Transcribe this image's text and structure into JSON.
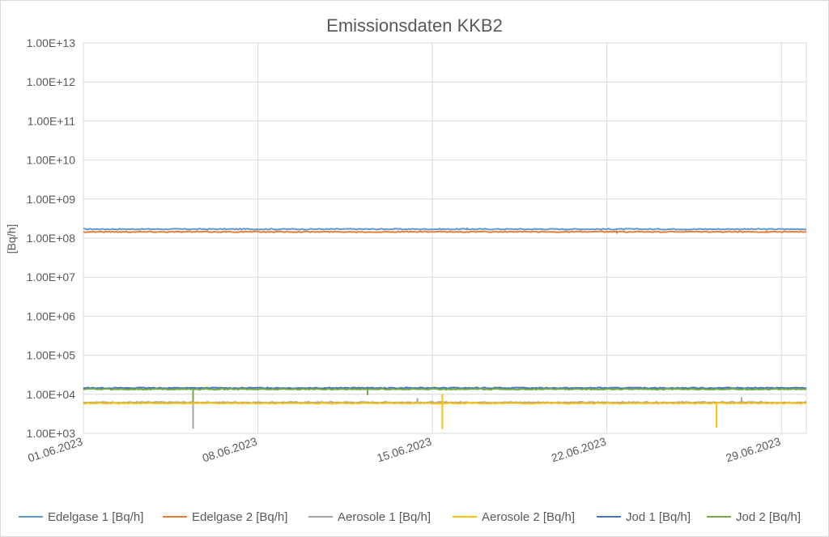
{
  "chart_data": {
    "type": "line",
    "title": "Emissionsdaten KKB2",
    "ylabel": "[Bq/h]",
    "xlabel": "",
    "yscale": "log",
    "ylim": [
      1000,
      10000000000000
    ],
    "xlim": [
      "2023-06-01",
      "2023-06-30"
    ],
    "y_tick_labels": [
      "1.00E+03",
      "1.00E+04",
      "1.00E+05",
      "1.00E+06",
      "1.00E+07",
      "1.00E+08",
      "1.00E+09",
      "1.00E+10",
      "1.00E+11",
      "1.00E+12",
      "1.00E+13"
    ],
    "x_tick_labels": [
      "01.06.2023",
      "08.06.2023",
      "15.06.2023",
      "22.06.2023",
      "29.06.2023"
    ],
    "grid": true,
    "legend_position": "bottom",
    "series": [
      {
        "name": "Edelgase 1 [Bq/h]",
        "color": "#5B9BD5",
        "base": 170000000,
        "spikes": [
          {
            "x": "2023-06-16",
            "y": 185000000
          },
          {
            "x": "2023-06-22",
            "y": 180000000
          },
          {
            "x": "2023-06-27",
            "y": 178000000
          }
        ]
      },
      {
        "name": "Edelgase 2 [Bq/h]",
        "color": "#ED7D31",
        "base": 145000000,
        "spikes": [
          {
            "x": "2023-06-22",
            "y": 130000000
          },
          {
            "x": "2023-06-28",
            "y": 135000000
          }
        ]
      },
      {
        "name": "Aerosole 1 [Bq/h]",
        "color": "#A5A5A5",
        "base": 6200,
        "spikes": [
          {
            "x": "2023-06-05",
            "y": 1300
          },
          {
            "x": "2023-06-14",
            "y": 8000
          },
          {
            "x": "2023-06-27",
            "y": 8500
          }
        ]
      },
      {
        "name": "Aerosole 2 [Bq/h]",
        "color": "#FFC000",
        "base": 5900,
        "spikes": [
          {
            "x": "2023-06-15",
            "y": 1300
          },
          {
            "x": "2023-06-15",
            "y": 10000
          },
          {
            "x": "2023-06-26",
            "y": 1400
          }
        ]
      },
      {
        "name": "Jod 1 [Bq/h]",
        "color": "#4472C4",
        "base": 14500,
        "spikes": []
      },
      {
        "name": "Jod 2 [Bq/h]",
        "color": "#70AD47",
        "base": 13500,
        "spikes": [
          {
            "x": "2023-06-05",
            "y": 6500
          },
          {
            "x": "2023-06-12",
            "y": 9500
          }
        ]
      }
    ]
  }
}
